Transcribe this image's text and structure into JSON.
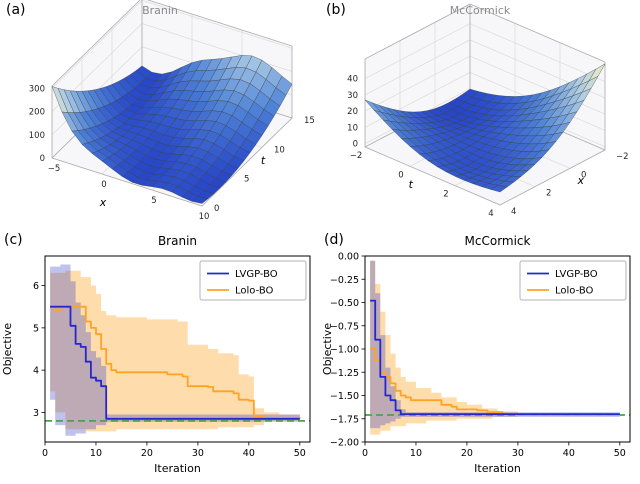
{
  "figure": {
    "panel_labels": [
      "(a)",
      "(b)",
      "(c)",
      "(d)"
    ]
  },
  "colors": {
    "lvgp_line": "#2626d0",
    "lolo_line": "#ffa226",
    "lvgp_band": "#3b46c4",
    "lolo_band": "#ffa226",
    "reference_line": "#4aa34a",
    "surface_low": "#2646c8",
    "surface_high": "#f4f0c4",
    "title_gray": "#8a8a8a"
  },
  "chart_data": [
    {
      "panel": "a",
      "type": "surface3d",
      "title": "Branin",
      "function": "branin",
      "xlabel": "x",
      "ylabel": "t",
      "x_range": [
        -5,
        10
      ],
      "t_range": [
        0,
        15
      ],
      "z_range": [
        0,
        310
      ],
      "x_ticks": [
        -5,
        0,
        5,
        10
      ],
      "t_ticks": [
        0,
        5,
        10,
        15
      ],
      "z_ticks": [
        0,
        100,
        200,
        300
      ],
      "grid_n": 15
    },
    {
      "panel": "b",
      "type": "surface3d",
      "title": "McCormick",
      "function": "mccormick",
      "xlabel": "x",
      "ylabel": "t",
      "x_range": [
        -2,
        4
      ],
      "t_range": [
        -2,
        4
      ],
      "z_range": [
        -2,
        52
      ],
      "x_ticks": [
        -2,
        0,
        2,
        4
      ],
      "t_ticks": [
        -2,
        0,
        2,
        4
      ],
      "z_ticks": [
        0,
        10,
        20,
        30,
        40
      ],
      "grid_n": 15
    },
    {
      "panel": "c",
      "type": "line",
      "title": "Branin",
      "xlabel": "Iteration",
      "ylabel": "Objective",
      "xlim": [
        0,
        52
      ],
      "ylim": [
        2.3,
        6.7
      ],
      "xticks": [
        0,
        10,
        20,
        30,
        40,
        50
      ],
      "yticks": [
        3,
        4,
        5,
        6
      ],
      "ytick_decimals": 0,
      "hline": {
        "y": 2.8
      },
      "legend": [
        "LVGP-BO",
        "Lolo-BO"
      ],
      "series": [
        {
          "name": "Lolo-BO",
          "role": "lolo",
          "points": [
            [
              1,
              5.5
            ],
            [
              2,
              5.4
            ],
            [
              3,
              5.5
            ],
            [
              7,
              5.5
            ],
            [
              8,
              5.15
            ],
            [
              9,
              5.0
            ],
            [
              10,
              4.85
            ],
            [
              11,
              4.5
            ],
            [
              12,
              4.15
            ],
            [
              13,
              4.0
            ],
            [
              14,
              3.95
            ],
            [
              24,
              3.9
            ],
            [
              27,
              3.85
            ],
            [
              28,
              3.62
            ],
            [
              32,
              3.6
            ],
            [
              33,
              3.5
            ],
            [
              37,
              3.45
            ],
            [
              38,
              3.3
            ],
            [
              40,
              3.28
            ],
            [
              41,
              2.9
            ],
            [
              43,
              2.87
            ],
            [
              50,
              2.85
            ]
          ],
          "band_upper": [
            [
              1,
              6.3
            ],
            [
              4,
              6.35
            ],
            [
              7,
              6.2
            ],
            [
              9,
              6.0
            ],
            [
              10,
              5.8
            ],
            [
              11,
              5.4
            ],
            [
              12,
              5.3
            ],
            [
              14,
              5.25
            ],
            [
              20,
              5.2
            ],
            [
              26,
              5.15
            ],
            [
              28,
              4.6
            ],
            [
              32,
              4.5
            ],
            [
              34,
              4.4
            ],
            [
              37,
              4.35
            ],
            [
              38,
              3.9
            ],
            [
              40,
              3.85
            ],
            [
              41,
              3.1
            ],
            [
              43,
              3.0
            ],
            [
              46,
              2.95
            ],
            [
              50,
              2.9
            ]
          ],
          "band_lower": [
            [
              1,
              3.5
            ],
            [
              2,
              3.0
            ],
            [
              4,
              2.6
            ],
            [
              8,
              2.55
            ],
            [
              14,
              2.6
            ],
            [
              24,
              2.6
            ],
            [
              34,
              2.65
            ],
            [
              41,
              2.7
            ],
            [
              43,
              2.8
            ],
            [
              50,
              2.8
            ]
          ],
          "band_opacity": 0.38
        },
        {
          "name": "LVGP-BO",
          "role": "lvgp",
          "points": [
            [
              1,
              5.5
            ],
            [
              4,
              5.5
            ],
            [
              5,
              5.05
            ],
            [
              6,
              4.62
            ],
            [
              7,
              4.55
            ],
            [
              8,
              4.2
            ],
            [
              9,
              3.82
            ],
            [
              10,
              3.75
            ],
            [
              11,
              3.62
            ],
            [
              12,
              2.85
            ],
            [
              50,
              2.85
            ]
          ],
          "band_upper": [
            [
              1,
              6.45
            ],
            [
              3,
              6.5
            ],
            [
              5,
              6.1
            ],
            [
              6,
              5.6
            ],
            [
              7,
              5.3
            ],
            [
              8,
              4.9
            ],
            [
              9,
              4.45
            ],
            [
              10,
              4.3
            ],
            [
              11,
              4.1
            ],
            [
              12,
              2.95
            ],
            [
              50,
              2.9
            ]
          ],
          "band_lower": [
            [
              1,
              3.3
            ],
            [
              2,
              2.7
            ],
            [
              4,
              2.45
            ],
            [
              6,
              2.5
            ],
            [
              8,
              2.6
            ],
            [
              10,
              2.7
            ],
            [
              12,
              2.78
            ],
            [
              50,
              2.8
            ]
          ],
          "band_opacity": 0.33
        }
      ]
    },
    {
      "panel": "d",
      "type": "line",
      "title": "McCormick",
      "xlabel": "Iteration",
      "ylabel": "Objective",
      "xlim": [
        0,
        52
      ],
      "ylim": [
        -2.0,
        0.0
      ],
      "xticks": [
        0,
        10,
        20,
        30,
        40,
        50
      ],
      "yticks": [
        0.0,
        -0.25,
        -0.5,
        -0.75,
        -1.0,
        -1.25,
        -1.5,
        -1.75,
        -2.0
      ],
      "ytick_decimals": 2,
      "hline": {
        "y": -1.71
      },
      "legend": [
        "LVGP-BO",
        "Lolo-BO"
      ],
      "series": [
        {
          "name": "Lolo-BO",
          "role": "lolo",
          "points": [
            [
              1,
              -1.0
            ],
            [
              2,
              -1.12
            ],
            [
              3,
              -1.25
            ],
            [
              4,
              -1.3
            ],
            [
              5,
              -1.37
            ],
            [
              6,
              -1.45
            ],
            [
              7,
              -1.5
            ],
            [
              8,
              -1.52
            ],
            [
              9,
              -1.55
            ],
            [
              14,
              -1.55
            ],
            [
              15,
              -1.6
            ],
            [
              17,
              -1.62
            ],
            [
              18,
              -1.65
            ],
            [
              22,
              -1.66
            ],
            [
              24,
              -1.68
            ],
            [
              27,
              -1.7
            ],
            [
              30,
              -1.71
            ],
            [
              50,
              -1.71
            ]
          ],
          "band_upper": [
            [
              1,
              -0.05
            ],
            [
              2,
              -0.3
            ],
            [
              3,
              -0.6
            ],
            [
              4,
              -0.85
            ],
            [
              5,
              -1.05
            ],
            [
              6,
              -1.2
            ],
            [
              7,
              -1.3
            ],
            [
              8,
              -1.35
            ],
            [
              10,
              -1.42
            ],
            [
              13,
              -1.47
            ],
            [
              15,
              -1.52
            ],
            [
              18,
              -1.57
            ],
            [
              20,
              -1.6
            ],
            [
              23,
              -1.64
            ],
            [
              26,
              -1.67
            ],
            [
              30,
              -1.7
            ],
            [
              50,
              -1.7
            ]
          ],
          "band_lower": [
            [
              1,
              -1.92
            ],
            [
              3,
              -1.88
            ],
            [
              5,
              -1.83
            ],
            [
              8,
              -1.8
            ],
            [
              12,
              -1.77
            ],
            [
              18,
              -1.75
            ],
            [
              25,
              -1.73
            ],
            [
              30,
              -1.72
            ],
            [
              50,
              -1.72
            ]
          ],
          "band_opacity": 0.38
        },
        {
          "name": "LVGP-BO",
          "role": "lvgp",
          "points": [
            [
              1,
              -0.48
            ],
            [
              2,
              -0.9
            ],
            [
              3,
              -1.3
            ],
            [
              4,
              -1.5
            ],
            [
              5,
              -1.55
            ],
            [
              6,
              -1.66
            ],
            [
              7,
              -1.7
            ],
            [
              50,
              -1.7
            ]
          ],
          "band_upper": [
            [
              1,
              -0.05
            ],
            [
              2,
              -0.4
            ],
            [
              3,
              -0.85
            ],
            [
              4,
              -1.2
            ],
            [
              5,
              -1.4
            ],
            [
              6,
              -1.55
            ],
            [
              7,
              -1.65
            ],
            [
              8,
              -1.68
            ],
            [
              50,
              -1.69
            ]
          ],
          "band_lower": [
            [
              1,
              -1.85
            ],
            [
              2,
              -1.85
            ],
            [
              3,
              -1.82
            ],
            [
              4,
              -1.8
            ],
            [
              5,
              -1.78
            ],
            [
              6,
              -1.75
            ],
            [
              7,
              -1.73
            ],
            [
              50,
              -1.71
            ]
          ],
          "band_opacity": 0.33
        }
      ]
    }
  ]
}
